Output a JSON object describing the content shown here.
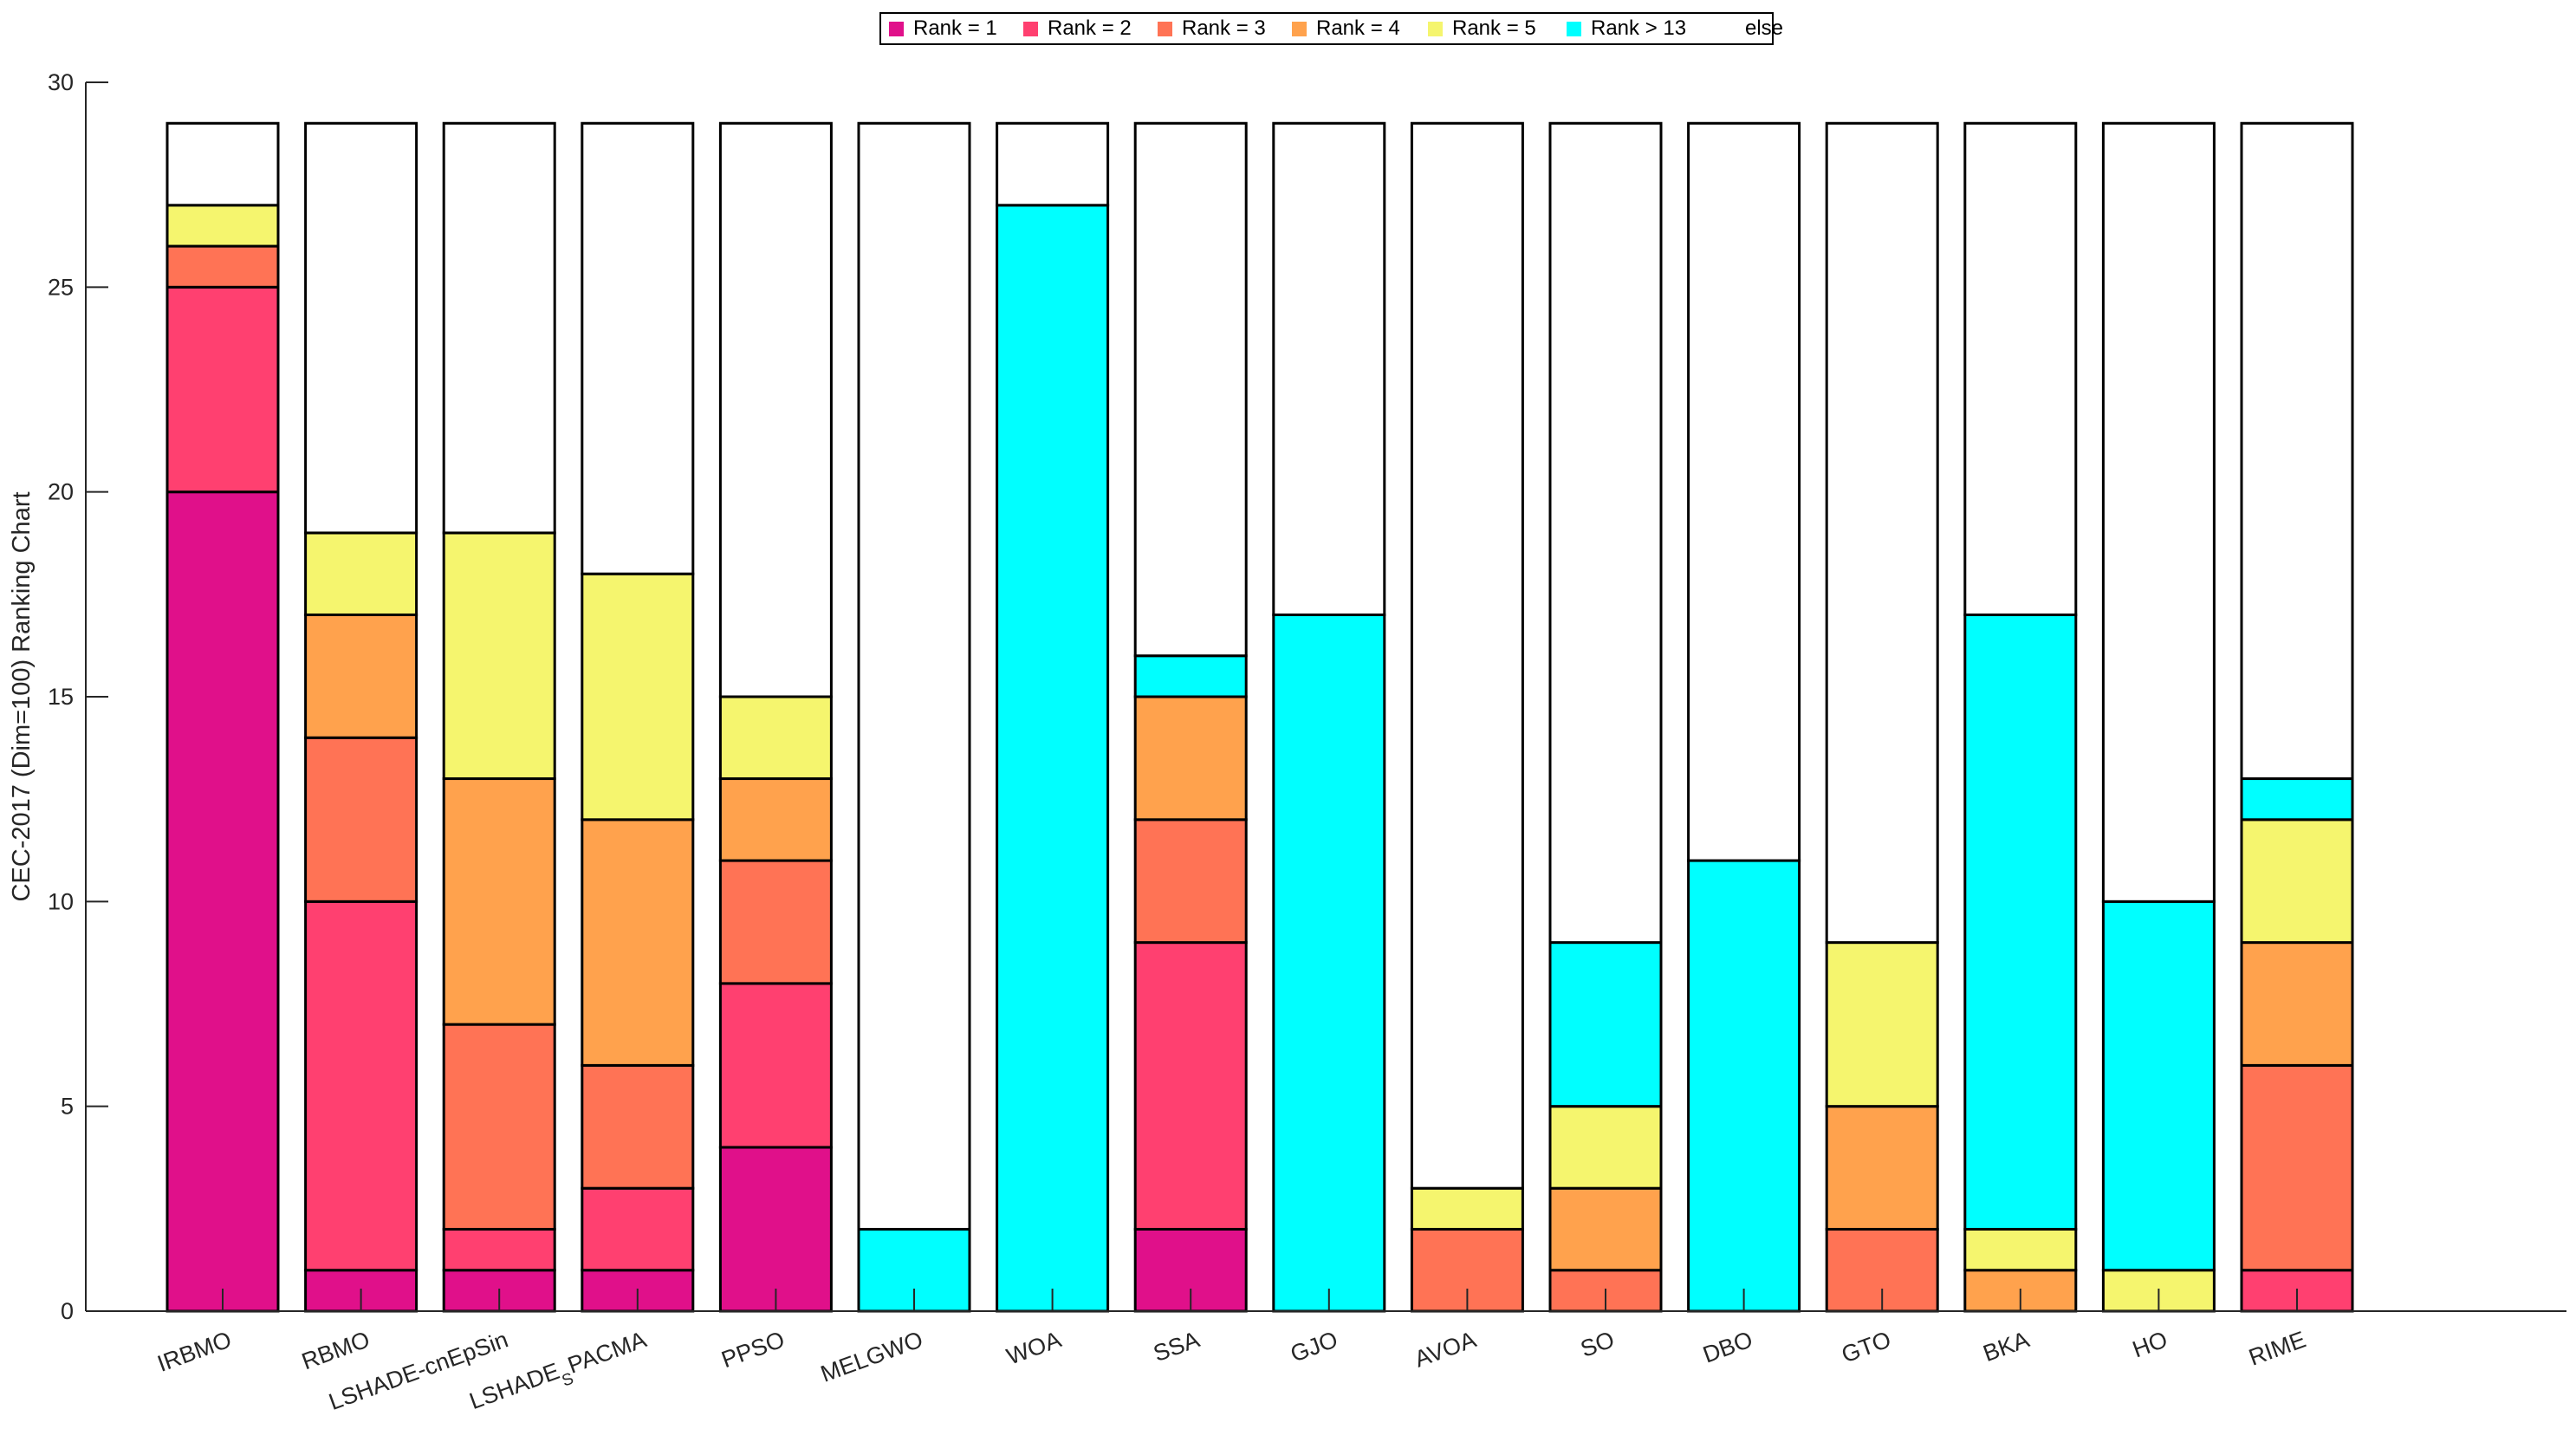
{
  "chart_data": {
    "type": "bar",
    "stacked": true,
    "ylabel": "CEC-2017 (Dim=100) Ranking Chart",
    "xlabel": "",
    "ylim": [
      0,
      30
    ],
    "yticks": [
      0,
      5,
      10,
      15,
      20,
      25,
      30
    ],
    "legend_position": "top-center",
    "categories": [
      "IRBMO",
      "RBMO",
      "LSHADE-cnEpSin",
      "LSHADE_SPACMA",
      "PPSO",
      "MELGWO",
      "WOA",
      "SSA",
      "GJO",
      "AVOA",
      "SO",
      "DBO",
      "GTO",
      "BKA",
      "HO",
      "RIME"
    ],
    "tick_labels": [
      {
        "main": "IRBMO",
        "sub": "",
        "tail": ""
      },
      {
        "main": "RBMO",
        "sub": "",
        "tail": ""
      },
      {
        "main": "LSHADE-cnEpSin",
        "sub": "",
        "tail": ""
      },
      {
        "main": "LSHADE",
        "sub": "S",
        "tail": "PACMA"
      },
      {
        "main": "PPSO",
        "sub": "",
        "tail": ""
      },
      {
        "main": "MELGWO",
        "sub": "",
        "tail": ""
      },
      {
        "main": "WOA",
        "sub": "",
        "tail": ""
      },
      {
        "main": "SSA",
        "sub": "",
        "tail": ""
      },
      {
        "main": "GJO",
        "sub": "",
        "tail": ""
      },
      {
        "main": "AVOA",
        "sub": "",
        "tail": ""
      },
      {
        "main": "SO",
        "sub": "",
        "tail": ""
      },
      {
        "main": "DBO",
        "sub": "",
        "tail": ""
      },
      {
        "main": "GTO",
        "sub": "",
        "tail": ""
      },
      {
        "main": "BKA",
        "sub": "",
        "tail": ""
      },
      {
        "main": "HO",
        "sub": "",
        "tail": ""
      },
      {
        "main": "RIME",
        "sub": "",
        "tail": ""
      }
    ],
    "series": [
      {
        "name": "Rank = 1",
        "color": "#e0108a",
        "values": [
          20,
          1,
          1,
          1,
          4,
          0,
          0,
          2,
          0,
          0,
          0,
          0,
          0,
          0,
          0,
          0
        ]
      },
      {
        "name": "Rank = 2",
        "color": "#ff4070",
        "values": [
          5,
          9,
          1,
          2,
          4,
          0,
          0,
          7,
          0,
          0,
          0,
          0,
          0,
          0,
          0,
          1
        ]
      },
      {
        "name": "Rank = 3",
        "color": "#ff7355",
        "values": [
          1,
          4,
          5,
          3,
          3,
          0,
          0,
          3,
          0,
          2,
          1,
          0,
          2,
          0,
          0,
          5
        ]
      },
      {
        "name": "Rank = 4",
        "color": "#ffa24d",
        "values": [
          0,
          3,
          6,
          6,
          2,
          0,
          0,
          3,
          0,
          0,
          2,
          0,
          3,
          1,
          0,
          3
        ]
      },
      {
        "name": "Rank = 5",
        "color": "#f5f56e",
        "values": [
          1,
          2,
          6,
          6,
          2,
          0,
          0,
          0,
          0,
          1,
          2,
          0,
          4,
          1,
          1,
          3
        ]
      },
      {
        "name": "Rank > 13",
        "color": "#00ffff",
        "values": [
          0,
          0,
          0,
          0,
          0,
          2,
          27,
          1,
          17,
          0,
          4,
          11,
          0,
          15,
          9,
          1
        ]
      },
      {
        "name": "else",
        "color": "#ffffff",
        "values": [
          2,
          10,
          10,
          11,
          14,
          27,
          2,
          13,
          12,
          26,
          20,
          18,
          20,
          12,
          19,
          16
        ]
      }
    ]
  }
}
